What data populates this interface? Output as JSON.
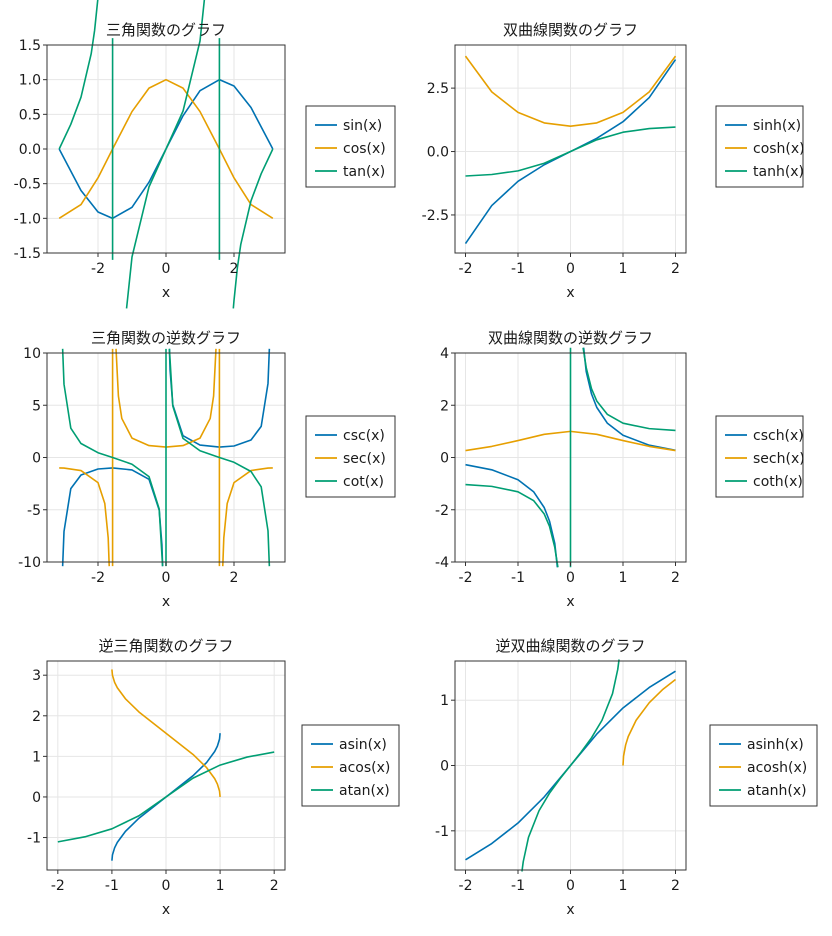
{
  "colors": {
    "blue": "#0072B2",
    "orange": "#E69F00",
    "green": "#009E73"
  },
  "chart_data": [
    {
      "type": "line",
      "title": "三角関数のグラフ",
      "xlabel": "x",
      "ylabel": "",
      "xlim": [
        -3.5,
        3.5
      ],
      "ylim": [
        -1.5,
        1.5
      ],
      "xticks": [
        -2,
        0,
        2
      ],
      "xtick_labels": [
        "-2",
        "0",
        "2"
      ],
      "yticks": [
        -1.5,
        -1.0,
        -0.5,
        0.0,
        0.5,
        1.0,
        1.5
      ],
      "ytick_labels": [
        "-1.5",
        "-1.0",
        "-0.5",
        "0.0",
        "0.5",
        "1.0",
        "1.5"
      ],
      "grid": true,
      "legend_placement": "right",
      "series": [
        {
          "name": "sin(x)",
          "color": "#0072B2",
          "x": [
            -3.1416,
            -2.5,
            -2.0,
            -1.5708,
            -1.0,
            -0.5,
            0.0,
            0.5,
            1.0,
            1.5708,
            2.0,
            2.5,
            3.1416
          ],
          "y": [
            0.0,
            -0.598,
            -0.909,
            -1.0,
            -0.841,
            -0.479,
            0.0,
            0.479,
            0.841,
            1.0,
            0.909,
            0.598,
            0.0
          ]
        },
        {
          "name": "cos(x)",
          "color": "#E69F00",
          "x": [
            -3.1416,
            -2.5,
            -2.0,
            -1.5708,
            -1.0,
            -0.5,
            0.0,
            0.5,
            1.0,
            1.5708,
            2.0,
            2.5,
            3.1416
          ],
          "y": [
            -1.0,
            -0.801,
            -0.416,
            0.0,
            0.54,
            0.878,
            1.0,
            0.878,
            0.54,
            0.0,
            -0.416,
            -0.801,
            -1.0
          ]
        },
        {
          "name": "tan(x)",
          "color": "#009E73",
          "segments": [
            {
              "x": [
                -3.1416,
                -2.8,
                -2.5,
                -2.2,
                -2.1,
                -2.0,
                -1.98
              ],
              "y": [
                0.0,
                0.356,
                0.747,
                1.374,
                1.71,
                2.185,
                2.3
              ]
            },
            {
              "x": [
                -1.5708,
                -1.5708
              ],
              "y": [
                1.6,
                -1.6
              ]
            },
            {
              "x": [
                -1.16,
                -1.0,
                -0.5,
                0.0,
                0.5,
                1.0,
                1.16
              ],
              "y": [
                -2.3,
                -1.557,
                -0.546,
                0.0,
                0.546,
                1.557,
                2.3
              ]
            },
            {
              "x": [
                1.5708,
                1.5708
              ],
              "y": [
                1.6,
                -1.6
              ]
            },
            {
              "x": [
                1.98,
                2.0,
                2.1,
                2.2,
                2.5,
                2.8,
                3.1416
              ],
              "y": [
                -2.3,
                -2.185,
                -1.71,
                -1.374,
                -0.747,
                -0.356,
                0.0
              ]
            }
          ]
        }
      ]
    },
    {
      "type": "line",
      "title": "双曲線関数のグラフ",
      "xlabel": "x",
      "ylabel": "",
      "xlim": [
        -2.2,
        2.2
      ],
      "ylim": [
        -4.0,
        4.2
      ],
      "xticks": [
        -2,
        -1,
        0,
        1,
        2
      ],
      "xtick_labels": [
        "-2",
        "-1",
        "0",
        "1",
        "2"
      ],
      "yticks": [
        -2.5,
        0.0,
        2.5
      ],
      "ytick_labels": [
        "-2.5",
        "0.0",
        "2.5"
      ],
      "grid": true,
      "legend_placement": "right",
      "series": [
        {
          "name": "sinh(x)",
          "color": "#0072B2",
          "x": [
            -2.0,
            -1.5,
            -1.0,
            -0.5,
            0.0,
            0.5,
            1.0,
            1.5,
            2.0
          ],
          "y": [
            -3.627,
            -2.129,
            -1.175,
            -0.521,
            0.0,
            0.521,
            1.175,
            2.129,
            3.627
          ]
        },
        {
          "name": "cosh(x)",
          "color": "#E69F00",
          "x": [
            -2.0,
            -1.5,
            -1.0,
            -0.5,
            0.0,
            0.5,
            1.0,
            1.5,
            2.0
          ],
          "y": [
            3.762,
            2.352,
            1.543,
            1.128,
            1.0,
            1.128,
            1.543,
            2.352,
            3.762
          ]
        },
        {
          "name": "tanh(x)",
          "color": "#009E73",
          "x": [
            -2.0,
            -1.5,
            -1.0,
            -0.5,
            0.0,
            0.5,
            1.0,
            1.5,
            2.0
          ],
          "y": [
            -0.964,
            -0.905,
            -0.762,
            -0.462,
            0.0,
            0.462,
            0.762,
            0.905,
            0.964
          ]
        }
      ]
    },
    {
      "type": "line",
      "title": "三角関数の逆数グラフ",
      "xlabel": "x",
      "ylabel": "",
      "xlim": [
        -3.5,
        3.5
      ],
      "ylim": [
        -10,
        10
      ],
      "xticks": [
        -2,
        0,
        2
      ],
      "xtick_labels": [
        "-2",
        "0",
        "2"
      ],
      "yticks": [
        -10,
        -5,
        0,
        5,
        10
      ],
      "ytick_labels": [
        "-10",
        "-5",
        "0",
        "5",
        "10"
      ],
      "grid": true,
      "legend_placement": "right",
      "series": [
        {
          "name": "csc(x)",
          "color": "#0072B2",
          "segments": [
            {
              "x": [
                -3.04,
                -3.0,
                -2.8,
                -2.5,
                -2.0,
                -1.5708,
                -1.0,
                -0.5,
                -0.2,
                -0.12,
                -0.1
              ],
              "y": [
                -10.4,
                -7.086,
                -2.981,
                -1.671,
                -1.1,
                -1.0,
                -1.188,
                -2.086,
                -5.033,
                -8.353,
                -10.4
              ]
            },
            {
              "x": [
                0.1,
                0.12,
                0.2,
                0.5,
                1.0,
                1.5708,
                2.0,
                2.5,
                2.8,
                3.0,
                3.04
              ],
              "y": [
                10.4,
                8.353,
                5.033,
                2.086,
                1.188,
                1.0,
                1.1,
                1.671,
                2.981,
                7.086,
                10.4
              ]
            }
          ]
        },
        {
          "name": "sec(x)",
          "color": "#E69F00",
          "segments": [
            {
              "x": [
                -3.1416,
                -3.0,
                -2.5,
                -2.0,
                -1.8,
                -1.7,
                -1.67
              ],
              "y": [
                -1.0,
                -1.01,
                -1.248,
                -2.403,
                -4.4,
                -7.696,
                -10.4
              ]
            },
            {
              "x": [
                -1.5708,
                -1.5708
              ],
              "y": [
                -10.4,
                10.4
              ]
            },
            {
              "x": [
                -1.47,
                -1.4,
                -1.3,
                -1.0,
                -0.5,
                0.0,
                0.5,
                1.0,
                1.3,
                1.4,
                1.47
              ],
              "y": [
                10.4,
                5.883,
                3.738,
                1.851,
                1.139,
                1.0,
                1.139,
                1.851,
                3.738,
                5.883,
                10.4
              ]
            },
            {
              "x": [
                1.5708,
                1.5708
              ],
              "y": [
                10.4,
                -10.4
              ]
            },
            {
              "x": [
                1.67,
                1.7,
                1.8,
                2.0,
                2.5,
                3.0,
                3.1416
              ],
              "y": [
                -10.4,
                -7.696,
                -4.4,
                -2.403,
                -1.248,
                -1.01,
                -1.0
              ]
            }
          ]
        },
        {
          "name": "cot(x)",
          "color": "#009E73",
          "segments": [
            {
              "x": [
                -3.04,
                -3.0,
                -2.8,
                -2.5,
                -2.0,
                -1.5708,
                -1.0,
                -0.5,
                -0.2,
                -0.1
              ],
              "y": [
                10.4,
                7.015,
                2.81,
                1.339,
                0.458,
                0.0,
                -0.642,
                -1.83,
                -4.933,
                -10.4
              ]
            },
            {
              "x": [
                0.0,
                0.0
              ],
              "y": [
                -10.4,
                10.4
              ]
            },
            {
              "x": [
                0.1,
                0.2,
                0.5,
                1.0,
                1.5708,
                2.0,
                2.5,
                2.8,
                3.0,
                3.04
              ],
              "y": [
                10.4,
                4.933,
                1.83,
                0.642,
                0.0,
                -0.458,
                -1.339,
                -2.81,
                -7.015,
                -10.4
              ]
            }
          ]
        }
      ]
    },
    {
      "type": "line",
      "title": "双曲線関数の逆数グラフ",
      "xlabel": "x",
      "ylabel": "",
      "xlim": [
        -2.2,
        2.2
      ],
      "ylim": [
        -4,
        4
      ],
      "xticks": [
        -2,
        -1,
        0,
        1,
        2
      ],
      "xtick_labels": [
        "-2",
        "-1",
        "0",
        "1",
        "2"
      ],
      "yticks": [
        -4,
        -2,
        0,
        2,
        4
      ],
      "ytick_labels": [
        "-4",
        "-2",
        "0",
        "2",
        "4"
      ],
      "grid": true,
      "legend_placement": "right",
      "series": [
        {
          "name": "csch(x)",
          "color": "#0072B2",
          "segments": [
            {
              "x": [
                -2.0,
                -1.5,
                -1.0,
                -0.7,
                -0.5,
                -0.4,
                -0.3,
                -0.25
              ],
              "y": [
                -0.276,
                -0.47,
                -0.851,
                -1.318,
                -1.919,
                -2.435,
                -3.283,
                -4.2
              ]
            },
            {
              "x": [
                0.25,
                0.3,
                0.4,
                0.5,
                0.7,
                1.0,
                1.5,
                2.0
              ],
              "y": [
                4.2,
                3.283,
                2.435,
                1.919,
                1.318,
                0.851,
                0.47,
                0.276
              ]
            }
          ]
        },
        {
          "name": "sech(x)",
          "color": "#E69F00",
          "x": [
            -2.0,
            -1.5,
            -1.0,
            -0.5,
            0.0,
            0.5,
            1.0,
            1.5,
            2.0
          ],
          "y": [
            0.266,
            0.425,
            0.648,
            0.887,
            1.0,
            0.887,
            0.648,
            0.425,
            0.266
          ]
        },
        {
          "name": "coth(x)",
          "color": "#009E73",
          "segments": [
            {
              "x": [
                -2.0,
                -1.5,
                -1.0,
                -0.7,
                -0.5,
                -0.4,
                -0.3,
                -0.24
              ],
              "y": [
                -1.037,
                -1.105,
                -1.313,
                -1.655,
                -2.164,
                -2.632,
                -3.433,
                -4.2
              ]
            },
            {
              "x": [
                0.0,
                0.0
              ],
              "y": [
                -4.2,
                4.2
              ]
            },
            {
              "x": [
                0.24,
                0.3,
                0.4,
                0.5,
                0.7,
                1.0,
                1.5,
                2.0
              ],
              "y": [
                4.2,
                3.433,
                2.632,
                2.164,
                1.655,
                1.313,
                1.105,
                1.037
              ]
            }
          ]
        }
      ]
    },
    {
      "type": "line",
      "title": "逆三角関数のグラフ",
      "xlabel": "x",
      "ylabel": "",
      "xlim": [
        -2.2,
        2.2
      ],
      "ylim": [
        -1.8,
        3.35
      ],
      "xticks": [
        -2,
        -1,
        0,
        1,
        2
      ],
      "xtick_labels": [
        "-2",
        "-1",
        "0",
        "1",
        "2"
      ],
      "yticks": [
        -1,
        0,
        1,
        2,
        3
      ],
      "ytick_labels": [
        "-1",
        "0",
        "1",
        "2",
        "3"
      ],
      "grid": true,
      "legend_placement": "right",
      "series": [
        {
          "name": "asin(x)",
          "color": "#0072B2",
          "x": [
            -1.0,
            -0.99,
            -0.95,
            -0.9,
            -0.75,
            -0.5,
            0.0,
            0.5,
            0.75,
            0.9,
            0.95,
            0.99,
            1.0
          ],
          "y": [
            -1.571,
            -1.429,
            -1.253,
            -1.12,
            -0.848,
            -0.524,
            0.0,
            0.524,
            0.848,
            1.12,
            1.253,
            1.429,
            1.571
          ]
        },
        {
          "name": "acos(x)",
          "color": "#E69F00",
          "x": [
            -1.0,
            -0.99,
            -0.95,
            -0.9,
            -0.75,
            -0.5,
            0.0,
            0.5,
            0.75,
            0.9,
            0.95,
            0.99,
            1.0
          ],
          "y": [
            3.142,
            3.0,
            2.824,
            2.691,
            2.419,
            2.094,
            1.571,
            1.047,
            0.723,
            0.451,
            0.318,
            0.142,
            0.0
          ]
        },
        {
          "name": "atan(x)",
          "color": "#009E73",
          "x": [
            -2.0,
            -1.5,
            -1.0,
            -0.5,
            0.0,
            0.5,
            1.0,
            1.5,
            2.0
          ],
          "y": [
            -1.107,
            -0.983,
            -0.785,
            -0.464,
            0.0,
            0.464,
            0.785,
            0.983,
            1.107
          ]
        }
      ]
    },
    {
      "type": "line",
      "title": "逆双曲線関数のグラフ",
      "xlabel": "x",
      "ylabel": "",
      "xlim": [
        -2.2,
        2.2
      ],
      "ylim": [
        -1.6,
        1.6
      ],
      "xticks": [
        -2,
        -1,
        0,
        1,
        2
      ],
      "xtick_labels": [
        "-2",
        "-1",
        "0",
        "1",
        "2"
      ],
      "yticks": [
        -1,
        0,
        1
      ],
      "ytick_labels": [
        "-1",
        "0",
        "1"
      ],
      "grid": true,
      "legend_placement": "right",
      "series": [
        {
          "name": "asinh(x)",
          "color": "#0072B2",
          "x": [
            -2.0,
            -1.5,
            -1.0,
            -0.5,
            0.0,
            0.5,
            1.0,
            1.5,
            2.0
          ],
          "y": [
            -1.444,
            -1.195,
            -0.881,
            -0.481,
            0.0,
            0.481,
            0.881,
            1.195,
            1.444
          ]
        },
        {
          "name": "acosh(x)",
          "color": "#E69F00",
          "x": [
            1.0,
            1.01,
            1.05,
            1.1,
            1.25,
            1.5,
            1.75,
            2.0
          ],
          "y": [
            0.0,
            0.141,
            0.315,
            0.444,
            0.693,
            0.962,
            1.159,
            1.317
          ]
        },
        {
          "name": "atanh(x)",
          "color": "#009E73",
          "x": [
            -0.925,
            -0.9,
            -0.8,
            -0.6,
            -0.4,
            -0.2,
            0.0,
            0.2,
            0.4,
            0.6,
            0.8,
            0.9,
            0.925
          ],
          "y": [
            -1.623,
            -1.472,
            -1.099,
            -0.693,
            -0.424,
            -0.203,
            0.0,
            0.203,
            0.424,
            0.693,
            1.099,
            1.472,
            1.623
          ]
        }
      ]
    }
  ]
}
